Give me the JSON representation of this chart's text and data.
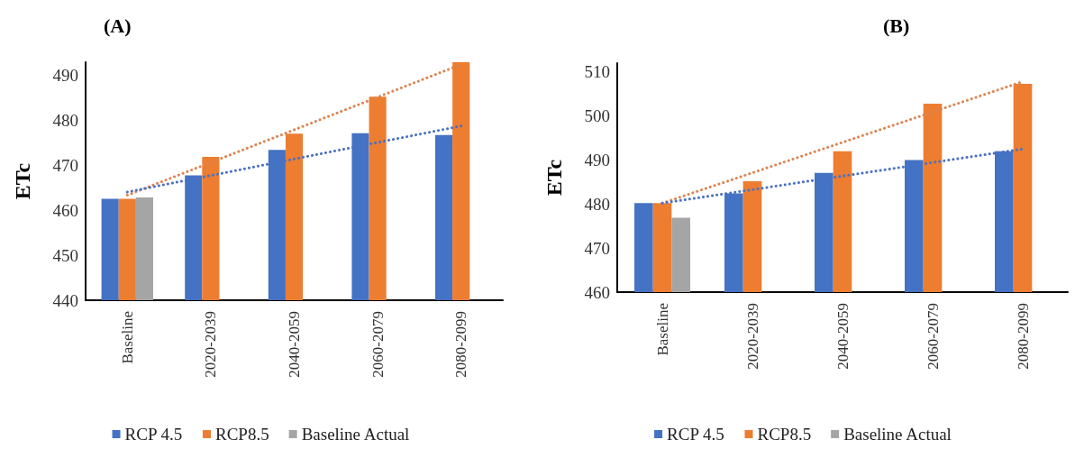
{
  "chart_data": [
    {
      "type": "bar",
      "title": "(A)",
      "ylabel": "ETc",
      "categories": [
        "Baseline",
        "2020-2039",
        "2040-2059",
        "2060-2079",
        "2080-2099"
      ],
      "ylim": [
        440,
        493
      ],
      "yticks": [
        440,
        450,
        460,
        470,
        480,
        490
      ],
      "grid": false,
      "legend": "bottom",
      "series": [
        {
          "name": "RCP 4.5",
          "color": "#4472c4",
          "values": [
            462.6,
            467.8,
            473.5,
            477.2,
            476.8
          ]
        },
        {
          "name": "RCP8.5",
          "color": "#ed7d31",
          "values": [
            462.6,
            471.9,
            477.1,
            485.3,
            493
          ]
        },
        {
          "name": "Baseline Actual",
          "color": "#a5a5a5",
          "values": [
            462.9,
            null,
            null,
            null,
            null
          ]
        },
        {
          "type": "line",
          "color": "#4a72c4",
          "line_style": "dotted",
          "marker": "none",
          "x": [
            "Baseline",
            "2080-2099"
          ],
          "values": [
            464.1,
            478.8
          ]
        },
        {
          "type": "line",
          "color": "#dd8450",
          "line_style": "dotted",
          "marker": "none",
          "x": [
            "Baseline",
            "2080-2099"
          ],
          "values": [
            463.4,
            492.5
          ]
        }
      ]
    },
    {
      "type": "bar",
      "title": "(B)",
      "ylabel": "ETc",
      "categories": [
        "Baseline",
        "2020-2039",
        "2040-2059",
        "2060-2079",
        "2080-2099"
      ],
      "ylim": [
        460,
        512
      ],
      "yticks": [
        460,
        470,
        480,
        490,
        500,
        510
      ],
      "grid": false,
      "legend": "bottom",
      "series": [
        {
          "name": "RCP 4.5",
          "color": "#4472c4",
          "values": [
            480.2,
            482.4,
            487.1,
            490,
            492
          ]
        },
        {
          "name": "RCP8.5",
          "color": "#ed7d31",
          "values": [
            480.2,
            485.2,
            492,
            502.8,
            507.3
          ]
        },
        {
          "name": "Baseline Actual",
          "color": "#a5a5a5",
          "values": [
            476.9,
            null,
            null,
            null,
            null
          ]
        },
        {
          "type": "line",
          "color": "#4a72c4",
          "line_style": "dotted",
          "marker": "none",
          "x": [
            "Baseline",
            "2080-2099"
          ],
          "values": [
            480.2,
            492.5
          ]
        },
        {
          "type": "line",
          "color": "#dd8450",
          "line_style": "dotted",
          "marker": "none",
          "x": [
            "Baseline",
            "2080-2099"
          ],
          "values": [
            480.2,
            507.8
          ]
        }
      ]
    }
  ]
}
